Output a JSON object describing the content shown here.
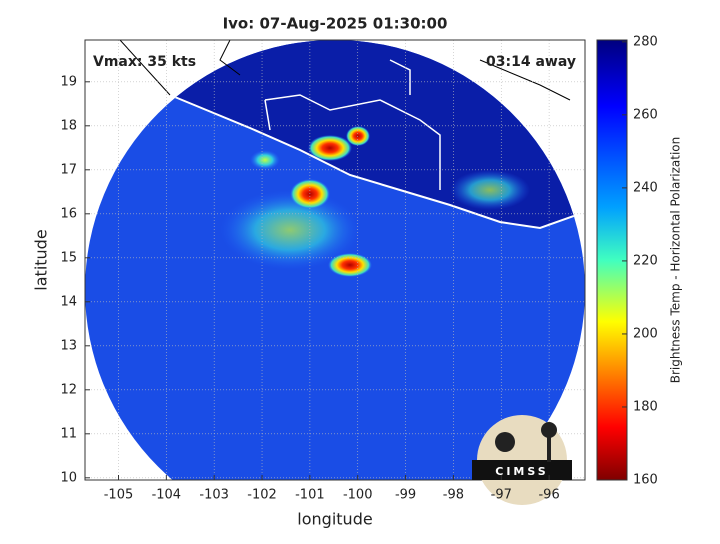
{
  "chart_data": {
    "type": "swath-map",
    "title": "Ivo: 07-Aug-2025 01:30:00",
    "annotations": [
      "Vmax: 35 kts",
      "03:14 away"
    ],
    "xlabel": "longitude",
    "ylabel": "latitude",
    "xlim": [
      -105.7,
      -95.25
    ],
    "ylim": [
      9.95,
      19.95
    ],
    "xticks": [
      -105,
      -104,
      -103,
      -102,
      -101,
      -100,
      -99,
      -98,
      -97,
      -96
    ],
    "yticks": [
      10,
      11,
      12,
      13,
      14,
      15,
      16,
      17,
      18,
      19
    ],
    "grid": true,
    "colorbar": {
      "label": "Brightness Temp - Horizontal Polarization",
      "lim": [
        160,
        280.5
      ],
      "ticks": [
        160,
        180,
        200,
        220,
        240,
        260,
        280
      ]
    },
    "logo": "CIMSS"
  }
}
